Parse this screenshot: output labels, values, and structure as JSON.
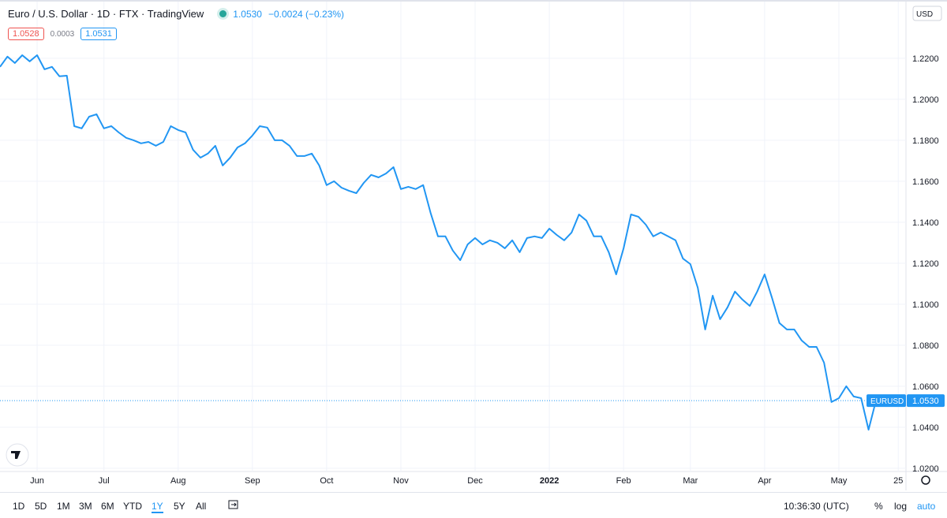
{
  "header": {
    "title": "Euro / U.S. Dollar · 1D · FTX · TradingView",
    "price": "1.0530",
    "change": "−0.0024 (−0.23%)",
    "bid": "1.0528",
    "spread": "0.0003",
    "ask": "1.0531",
    "currency": "USD"
  },
  "toolbar": {
    "ranges": [
      "1D",
      "5D",
      "1M",
      "3M",
      "6M",
      "YTD",
      "1Y",
      "5Y",
      "All"
    ],
    "time": "10:36:30 (UTC)",
    "percent": "%",
    "log": "log",
    "auto": "auto"
  },
  "chart_data": {
    "type": "line",
    "categories": [
      null,
      null,
      null,
      null,
      null,
      "Jun",
      null,
      null,
      null,
      null,
      null,
      null,
      null,
      null,
      "Jul",
      null,
      null,
      null,
      null,
      null,
      null,
      null,
      null,
      null,
      "Aug",
      null,
      null,
      null,
      null,
      null,
      null,
      null,
      null,
      null,
      "Sep",
      null,
      null,
      null,
      null,
      null,
      null,
      null,
      null,
      null,
      "Oct",
      null,
      null,
      null,
      null,
      null,
      null,
      null,
      null,
      null,
      "Nov",
      null,
      null,
      null,
      null,
      null,
      null,
      null,
      null,
      null,
      "Dec",
      null,
      null,
      null,
      null,
      null,
      null,
      null,
      null,
      null,
      "2022",
      null,
      null,
      null,
      null,
      null,
      null,
      null,
      null,
      null,
      "Feb",
      null,
      null,
      null,
      null,
      null,
      null,
      null,
      null,
      "Mar",
      null,
      null,
      null,
      null,
      null,
      null,
      null,
      null,
      null,
      "Apr",
      null,
      null,
      null,
      null,
      null,
      null,
      null,
      null,
      null,
      "May",
      null,
      null,
      null,
      null,
      null,
      null,
      null,
      "25"
    ],
    "series": [
      {
        "name": "EURUSD",
        "color": "#2196f3",
        "values": [
          1.2158,
          1.2208,
          1.2177,
          1.2215,
          1.2185,
          1.2215,
          1.2146,
          1.2158,
          1.2112,
          1.2115,
          1.1869,
          1.1858,
          1.1915,
          1.1927,
          1.1858,
          1.1869,
          1.1838,
          1.1812,
          1.18,
          1.1785,
          1.1792,
          1.1773,
          1.1792,
          1.1869,
          1.185,
          1.1838,
          1.1754,
          1.1715,
          1.1735,
          1.1773,
          1.1677,
          1.1715,
          1.1765,
          1.1785,
          1.1823,
          1.1869,
          1.1862,
          1.18,
          1.18,
          1.1773,
          1.1723,
          1.1723,
          1.1735,
          1.1677,
          1.1581,
          1.16,
          1.1569,
          1.1554,
          1.1542,
          1.1592,
          1.1631,
          1.1619,
          1.1638,
          1.1669,
          1.1562,
          1.1573,
          1.1562,
          1.1581,
          1.1446,
          1.1331,
          1.1331,
          1.1262,
          1.1215,
          1.1292,
          1.1323,
          1.1292,
          1.1312,
          1.13,
          1.1273,
          1.1312,
          1.1254,
          1.1323,
          1.1331,
          1.1323,
          1.1369,
          1.1338,
          1.1312,
          1.135,
          1.1438,
          1.1408,
          1.1331,
          1.1331,
          1.1254,
          1.1146,
          1.1273,
          1.1438,
          1.1427,
          1.1388,
          1.1331,
          1.135,
          1.1331,
          1.1312,
          1.1223,
          1.1196,
          1.1081,
          1.0877,
          1.1042,
          1.0927,
          1.0985,
          1.1062,
          1.1023,
          1.0992,
          1.1062,
          1.1146,
          1.1031,
          1.0908,
          1.0877,
          1.0877,
          1.0823,
          1.0792,
          1.0792,
          1.0715,
          1.0523,
          1.0542,
          1.06,
          1.055,
          1.0542,
          1.0388,
          1.053,
          null,
          null,
          null
        ],
        "last_label": "1.0530"
      }
    ],
    "ylim": [
      1.0192,
      1.2465
    ],
    "yticks": [
      {
        "value": 1.02,
        "label": "1.0200"
      },
      {
        "value": 1.04,
        "label": "1.0400"
      },
      {
        "value": 1.06,
        "label": "1.0600"
      },
      {
        "value": 1.08,
        "label": "1.0800"
      },
      {
        "value": 1.1,
        "label": "1.1000"
      },
      {
        "value": 1.12,
        "label": "1.1200"
      },
      {
        "value": 1.14,
        "label": "1.1400"
      },
      {
        "value": 1.16,
        "label": "1.1600"
      },
      {
        "value": 1.18,
        "label": "1.1800"
      },
      {
        "value": 1.2,
        "label": "1.2000"
      },
      {
        "value": 1.22,
        "label": "1.2200"
      }
    ],
    "grid": true
  }
}
